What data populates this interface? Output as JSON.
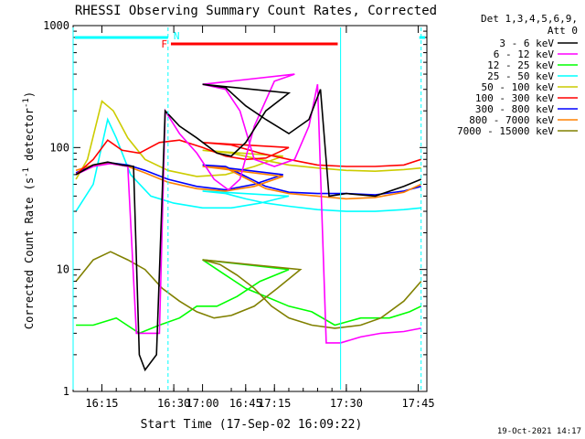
{
  "chart_data": {
    "type": "line",
    "title": "RHESSI Observing Summary Count Rates, Corrected",
    "xlabel": "Start Time (17-Sep-02 16:09:22)",
    "ylabel_main": "Corrected Count Rate (s",
    "ylabel_sup1": "-1",
    "ylabel_mid": " detector",
    "ylabel_sup2": "-1",
    "ylabel_end": ")",
    "yscale": "log",
    "ylim": [
      1,
      1000
    ],
    "yticks": [
      {
        "value": 1,
        "label": "1"
      },
      {
        "value": 10,
        "label": "10"
      },
      {
        "value": 100,
        "label": "100"
      },
      {
        "value": 1000,
        "label": "1000"
      }
    ],
    "xlim_minutes": [
      16.15,
      17.78
    ],
    "xticks": [
      {
        "value": 16.25,
        "label": "16:15"
      },
      {
        "value": 16.5,
        "label": "16:30"
      },
      {
        "value": 16.75,
        "label": "16:45"
      },
      {
        "value": 17.0,
        "label": "17:00"
      },
      {
        "value": 17.25,
        "label": "17:15"
      },
      {
        "value": 17.5,
        "label": "17:30"
      },
      {
        "value": 17.75,
        "label": "17:45"
      }
    ],
    "legend_header": [
      "Det 1,3,4,5,6,9,",
      "Att 0"
    ],
    "legend_position": "right",
    "footer_date": "19-Oct-2021 14:17",
    "flags": [
      {
        "label": "F",
        "color": "#ff0000",
        "start": 16.49,
        "end": 17.47
      },
      {
        "label": "N",
        "color": "#00ffff",
        "start": 16.48,
        "end": 16.48
      }
    ],
    "series": [
      {
        "name": "3 - 6 keV",
        "color": "#000000",
        "points": [
          [
            16.16,
            60
          ],
          [
            16.22,
            72
          ],
          [
            16.27,
            76
          ],
          [
            16.32,
            72
          ],
          [
            16.36,
            70
          ],
          [
            16.38,
            2
          ],
          [
            16.4,
            1.5
          ],
          [
            16.44,
            2
          ],
          [
            16.47,
            200
          ],
          [
            16.52,
            150
          ],
          [
            16.58,
            120
          ],
          [
            16.65,
            90
          ],
          [
            16.7,
            85
          ],
          [
            16.75,
            110
          ],
          [
            16.82,
            200
          ],
          [
            16.9,
            280
          ],
          [
            17.0,
            330
          ],
          [
            17.08,
            310
          ],
          [
            17.15,
            220
          ],
          [
            17.22,
            170
          ],
          [
            17.3,
            130
          ],
          [
            17.37,
            170
          ],
          [
            17.41,
            300
          ],
          [
            17.44,
            40
          ],
          [
            17.5,
            42
          ],
          [
            17.6,
            40
          ],
          [
            17.7,
            48
          ],
          [
            17.76,
            55
          ]
        ]
      },
      {
        "name": "6 - 12 keV",
        "color": "#ff00ff",
        "points": [
          [
            16.16,
            60
          ],
          [
            16.22,
            70
          ],
          [
            16.28,
            74
          ],
          [
            16.34,
            70
          ],
          [
            16.37,
            3
          ],
          [
            16.45,
            3
          ],
          [
            16.47,
            200
          ],
          [
            16.52,
            130
          ],
          [
            16.58,
            90
          ],
          [
            16.64,
            55
          ],
          [
            16.69,
            45
          ],
          [
            16.73,
            55
          ],
          [
            16.78,
            150
          ],
          [
            16.85,
            350
          ],
          [
            16.92,
            400
          ],
          [
            17.0,
            330
          ],
          [
            17.08,
            300
          ],
          [
            17.13,
            200
          ],
          [
            17.18,
            80
          ],
          [
            17.25,
            70
          ],
          [
            17.32,
            80
          ],
          [
            17.37,
            150
          ],
          [
            17.4,
            330
          ],
          [
            17.43,
            2.5
          ],
          [
            17.48,
            2.5
          ],
          [
            17.55,
            2.8
          ],
          [
            17.62,
            3
          ],
          [
            17.7,
            3.1
          ],
          [
            17.76,
            3.3
          ]
        ]
      },
      {
        "name": "12 - 25 keV",
        "color": "#00ff00",
        "points": [
          [
            16.16,
            3.5
          ],
          [
            16.22,
            3.5
          ],
          [
            16.3,
            4
          ],
          [
            16.38,
            3
          ],
          [
            16.45,
            3.5
          ],
          [
            16.52,
            4
          ],
          [
            16.58,
            5
          ],
          [
            16.65,
            5
          ],
          [
            16.72,
            6
          ],
          [
            16.8,
            8
          ],
          [
            16.9,
            10
          ],
          [
            17.0,
            12
          ],
          [
            17.08,
            9
          ],
          [
            17.15,
            7
          ],
          [
            17.22,
            6
          ],
          [
            17.3,
            5
          ],
          [
            17.38,
            4.5
          ],
          [
            17.46,
            3.5
          ],
          [
            17.55,
            4
          ],
          [
            17.65,
            4
          ],
          [
            17.72,
            4.5
          ],
          [
            17.76,
            5
          ]
        ]
      },
      {
        "name": "25 - 50 keV",
        "color": "#00ffff",
        "points": [
          [
            16.16,
            30
          ],
          [
            16.22,
            50
          ],
          [
            16.27,
            170
          ],
          [
            16.3,
            120
          ],
          [
            16.35,
            60
          ],
          [
            16.42,
            40
          ],
          [
            16.5,
            35
          ],
          [
            16.6,
            32
          ],
          [
            16.7,
            32
          ],
          [
            16.8,
            35
          ],
          [
            16.9,
            40
          ],
          [
            17.0,
            44
          ],
          [
            17.08,
            42
          ],
          [
            17.15,
            38
          ],
          [
            17.22,
            35
          ],
          [
            17.3,
            33
          ],
          [
            17.4,
            31
          ],
          [
            17.5,
            30
          ],
          [
            17.6,
            30
          ],
          [
            17.7,
            31
          ],
          [
            17.76,
            32
          ]
        ]
      },
      {
        "name": "50 - 100 keV",
        "color": "#cccc00",
        "points": [
          [
            16.16,
            55
          ],
          [
            16.2,
            80
          ],
          [
            16.25,
            240
          ],
          [
            16.29,
            200
          ],
          [
            16.34,
            120
          ],
          [
            16.4,
            80
          ],
          [
            16.48,
            65
          ],
          [
            16.58,
            58
          ],
          [
            16.68,
            60
          ],
          [
            16.78,
            70
          ],
          [
            16.88,
            85
          ],
          [
            17.0,
            95
          ],
          [
            17.1,
            90
          ],
          [
            17.2,
            80
          ],
          [
            17.3,
            72
          ],
          [
            17.4,
            68
          ],
          [
            17.5,
            65
          ],
          [
            17.6,
            64
          ],
          [
            17.7,
            66
          ],
          [
            17.76,
            68
          ]
        ]
      },
      {
        "name": "100 - 300 keV",
        "color": "#ff0000",
        "points": [
          [
            16.16,
            60
          ],
          [
            16.22,
            80
          ],
          [
            16.27,
            115
          ],
          [
            16.32,
            95
          ],
          [
            16.38,
            90
          ],
          [
            16.45,
            110
          ],
          [
            16.52,
            115
          ],
          [
            16.6,
            100
          ],
          [
            16.68,
            85
          ],
          [
            16.75,
            80
          ],
          [
            16.82,
            82
          ],
          [
            16.9,
            100
          ],
          [
            17.0,
            110
          ],
          [
            17.1,
            105
          ],
          [
            17.2,
            90
          ],
          [
            17.3,
            80
          ],
          [
            17.4,
            72
          ],
          [
            17.5,
            70
          ],
          [
            17.6,
            70
          ],
          [
            17.7,
            72
          ],
          [
            17.76,
            80
          ]
        ]
      },
      {
        "name": "300 - 800 keV",
        "color": "#0000ff",
        "points": [
          [
            16.16,
            62
          ],
          [
            16.22,
            72
          ],
          [
            16.28,
            75
          ],
          [
            16.34,
            72
          ],
          [
            16.4,
            65
          ],
          [
            16.48,
            55
          ],
          [
            16.58,
            48
          ],
          [
            16.68,
            45
          ],
          [
            16.78,
            50
          ],
          [
            16.88,
            60
          ],
          [
            17.0,
            72
          ],
          [
            17.08,
            70
          ],
          [
            17.15,
            58
          ],
          [
            17.22,
            48
          ],
          [
            17.3,
            43
          ],
          [
            17.4,
            42
          ],
          [
            17.5,
            42
          ],
          [
            17.6,
            41
          ],
          [
            17.7,
            44
          ],
          [
            17.76,
            48
          ]
        ]
      },
      {
        "name": "800 - 7000 keV",
        "color": "#ff8000",
        "points": [
          [
            16.16,
            65
          ],
          [
            16.22,
            72
          ],
          [
            16.28,
            74
          ],
          [
            16.34,
            70
          ],
          [
            16.4,
            62
          ],
          [
            16.48,
            52
          ],
          [
            16.58,
            46
          ],
          [
            16.68,
            44
          ],
          [
            16.78,
            48
          ],
          [
            16.88,
            58
          ],
          [
            17.0,
            70
          ],
          [
            17.08,
            68
          ],
          [
            17.15,
            56
          ],
          [
            17.22,
            46
          ],
          [
            17.3,
            42
          ],
          [
            17.4,
            40
          ],
          [
            17.5,
            38
          ],
          [
            17.6,
            39
          ],
          [
            17.7,
            43
          ],
          [
            17.76,
            50
          ]
        ]
      },
      {
        "name": "7000 - 15000 keV",
        "color": "#808000",
        "points": [
          [
            16.16,
            8
          ],
          [
            16.22,
            12
          ],
          [
            16.28,
            14
          ],
          [
            16.34,
            12
          ],
          [
            16.4,
            10
          ],
          [
            16.46,
            7
          ],
          [
            16.52,
            5.5
          ],
          [
            16.58,
            4.5
          ],
          [
            16.64,
            4
          ],
          [
            16.7,
            4.2
          ],
          [
            16.78,
            5
          ],
          [
            16.86,
            7
          ],
          [
            16.94,
            10
          ],
          [
            17.0,
            12
          ],
          [
            17.06,
            11
          ],
          [
            17.12,
            9
          ],
          [
            17.18,
            7
          ],
          [
            17.24,
            5
          ],
          [
            17.3,
            4
          ],
          [
            17.38,
            3.5
          ],
          [
            17.46,
            3.3
          ],
          [
            17.55,
            3.5
          ],
          [
            17.62,
            4
          ],
          [
            17.7,
            5.5
          ],
          [
            17.76,
            8
          ]
        ]
      }
    ]
  }
}
